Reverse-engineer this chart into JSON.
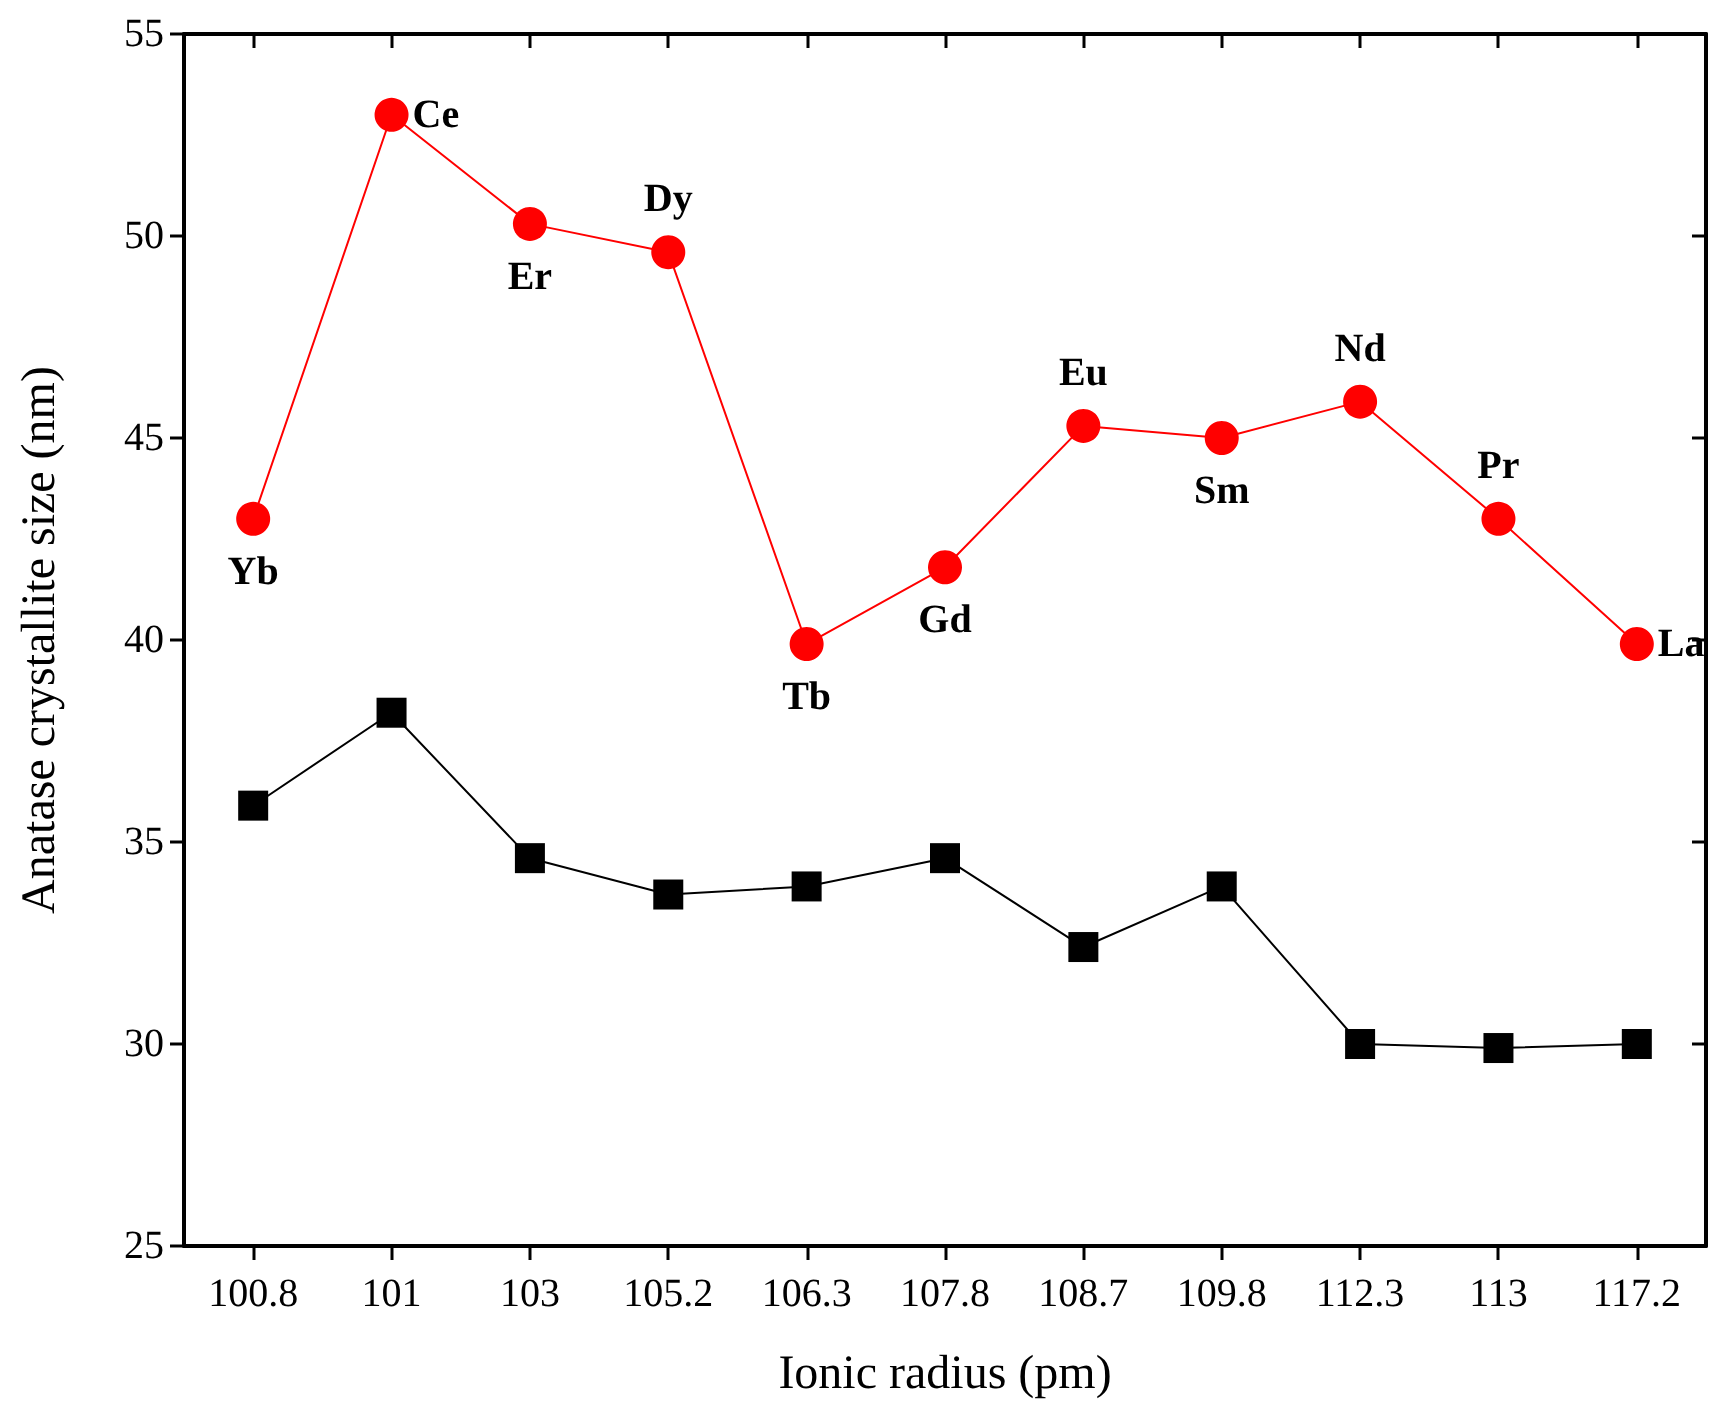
{
  "chart_data": {
    "type": "line",
    "xlabel": "Ionic radius (pm)",
    "ylabel": "Anatase crystallite size (nm)",
    "categories": [
      "100.8",
      "101",
      "103",
      "105.2",
      "106.3",
      "107.8",
      "108.7",
      "109.8",
      "112.3",
      "113",
      "117.2"
    ],
    "series": [
      {
        "color": "#ff0000",
        "marker": "circle",
        "values": [
          43.0,
          53.0,
          50.3,
          49.6,
          39.9,
          41.8,
          45.3,
          45.0,
          45.9,
          43.0,
          39.9
        ]
      },
      {
        "color": "#000000",
        "marker": "square",
        "values": [
          35.9,
          38.2,
          34.6,
          33.7,
          33.9,
          34.6,
          32.4,
          33.9,
          30.0,
          29.9,
          30.0
        ]
      }
    ],
    "annotations": [
      {
        "text": "Yb",
        "x": "100.8",
        "y": 43.0
      },
      {
        "text": "Ce",
        "x": "101",
        "y": 53.0
      },
      {
        "text": "Er",
        "x": "103",
        "y": 50.3
      },
      {
        "text": "Dy",
        "x": "105.2",
        "y": 49.6
      },
      {
        "text": "Tb",
        "x": "106.3",
        "y": 39.9
      },
      {
        "text": "Gd",
        "x": "107.8",
        "y": 41.8
      },
      {
        "text": "Eu",
        "x": "108.7",
        "y": 45.3
      },
      {
        "text": "Sm",
        "x": "109.8",
        "y": 45.0
      },
      {
        "text": "Nd",
        "x": "112.3",
        "y": 45.9
      },
      {
        "text": "Pr",
        "x": "113",
        "y": 43.0
      },
      {
        "text": "La",
        "x": "117.2",
        "y": 39.9
      }
    ],
    "ylim": [
      25,
      55
    ],
    "yticks": [
      25,
      30,
      35,
      40,
      45,
      50,
      55
    ],
    "grid": false
  }
}
